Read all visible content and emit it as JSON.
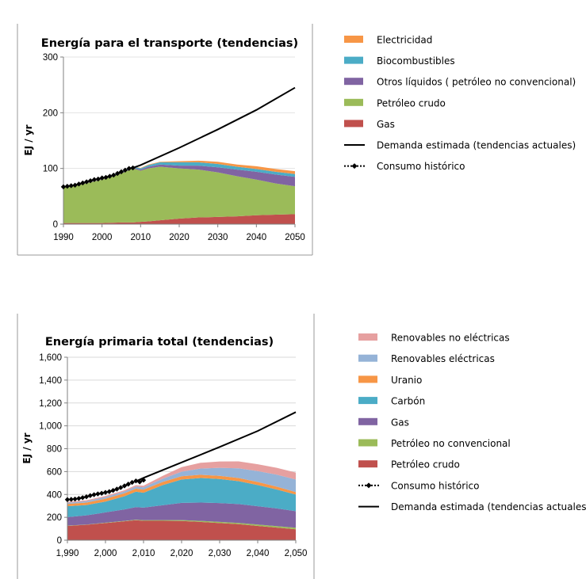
{
  "chart_data": [
    {
      "type": "area",
      "title": "Energía para el transporte (tendencias)",
      "ylabel": "EJ / yr",
      "xlabel": "",
      "xlim": [
        1990,
        2050
      ],
      "ylim": [
        0,
        300
      ],
      "x_ticks": [
        1990,
        2000,
        2010,
        2020,
        2030,
        2040,
        2050
      ],
      "y_ticks": [
        0,
        100,
        200,
        300
      ],
      "y_tick_labels": [
        "0",
        "100",
        "200",
        "300"
      ],
      "x": [
        1990,
        1995,
        2000,
        2005,
        2008,
        2010,
        2012,
        2015,
        2020,
        2025,
        2030,
        2035,
        2040,
        2045,
        2050
      ],
      "stacked_series": [
        {
          "name": "Gas",
          "color": "#C0504D",
          "values": [
            2,
            2,
            2,
            3,
            3,
            4,
            5,
            7,
            10,
            12,
            13,
            14,
            16,
            17,
            18
          ]
        },
        {
          "name": "Petróleo crudo",
          "color": "#9BBB59",
          "values": [
            64,
            70,
            78,
            88,
            97,
            92,
            95,
            96,
            90,
            86,
            80,
            72,
            64,
            56,
            50
          ]
        },
        {
          "name": "Otros líquidos ( petróleo no convencional)",
          "color": "#8064A2",
          "values": [
            1,
            1,
            1,
            2,
            2,
            2,
            3,
            4,
            5,
            7,
            9,
            12,
            14,
            16,
            17
          ]
        },
        {
          "name": "Biocombustibles",
          "color": "#4BACC6",
          "values": [
            0,
            0,
            0,
            1,
            2,
            2,
            3,
            4,
            6,
            6,
            6,
            5,
            5,
            5,
            5
          ]
        },
        {
          "name": "Electricidad",
          "color": "#F79646",
          "values": [
            0,
            0,
            0,
            0,
            0,
            1,
            1,
            1,
            2,
            3,
            4,
            4,
            5,
            5,
            5
          ]
        }
      ],
      "line_series": [
        {
          "name": "Demanda estimada (tendencias actuales)",
          "style": "solid",
          "x": [
            2008,
            2010,
            2020,
            2030,
            2040,
            2050
          ],
          "values": [
            101,
            106,
            137,
            170,
            205,
            245
          ]
        },
        {
          "name": "Consumo histórico",
          "style": "dotted-diamond",
          "x": [
            1990,
            1991,
            1992,
            1993,
            1994,
            1995,
            1996,
            1997,
            1998,
            1999,
            2000,
            2001,
            2002,
            2003,
            2004,
            2005,
            2006,
            2007,
            2008
          ],
          "values": [
            67,
            68,
            69,
            70,
            72,
            74,
            76,
            78,
            80,
            81,
            83,
            84,
            86,
            88,
            91,
            94,
            97,
            100,
            101
          ]
        }
      ],
      "legend": {
        "placement": "right",
        "entries": [
          {
            "label": "Electricidad",
            "kind": "swatch",
            "color": "#F79646"
          },
          {
            "label": "Biocombustibles",
            "kind": "swatch",
            "color": "#4BACC6"
          },
          {
            "label": "Otros líquidos ( petróleo no convencional)",
            "kind": "swatch",
            "color": "#8064A2"
          },
          {
            "label": "Petróleo crudo",
            "kind": "swatch",
            "color": "#9BBB59"
          },
          {
            "label": "Gas",
            "kind": "swatch",
            "color": "#C0504D"
          },
          {
            "label": "Demanda estimada (tendencias actuales)",
            "kind": "line"
          },
          {
            "label": "Consumo histórico",
            "kind": "dotted"
          }
        ]
      }
    },
    {
      "type": "area",
      "title": "Energía primaria total  (tendencias)",
      "ylabel": "EJ / yr",
      "xlabel": "",
      "xlim": [
        1990,
        2050
      ],
      "ylim": [
        0,
        1600
      ],
      "x_ticks": [
        1990,
        2000,
        2010,
        2020,
        2030,
        2040,
        2050
      ],
      "x_tick_labels": [
        "1,990",
        "2,000",
        "2,010",
        "2,020",
        "2,030",
        "2,040",
        "2,050"
      ],
      "y_ticks": [
        0,
        200,
        400,
        600,
        800,
        1000,
        1200,
        1400,
        1600
      ],
      "y_tick_labels": [
        "0",
        "200",
        "400",
        "600",
        "800",
        "1,000",
        "1,200",
        "1,400",
        "1,600"
      ],
      "x": [
        1990,
        1995,
        2000,
        2005,
        2008,
        2010,
        2015,
        2020,
        2025,
        2030,
        2035,
        2040,
        2045,
        2050
      ],
      "stacked_series": [
        {
          "name": "Petróleo crudo",
          "color": "#C0504D",
          "values": [
            125,
            135,
            150,
            165,
            175,
            170,
            170,
            168,
            160,
            150,
            140,
            125,
            110,
            95
          ]
        },
        {
          "name": "Petróleo no convencional",
          "color": "#9BBB59",
          "values": [
            2,
            2,
            3,
            4,
            4,
            5,
            6,
            8,
            9,
            10,
            11,
            12,
            13,
            14
          ]
        },
        {
          "name": "Gas",
          "color": "#8064A2",
          "values": [
            75,
            80,
            90,
            100,
            110,
            110,
            130,
            150,
            160,
            165,
            165,
            160,
            155,
            145
          ]
        },
        {
          "name": "Carbón",
          "color": "#4BACC6",
          "values": [
            95,
            90,
            95,
            115,
            135,
            130,
            175,
            205,
            215,
            210,
            200,
            185,
            165,
            145
          ]
        },
        {
          "name": "Uranio",
          "color": "#F79646",
          "values": [
            20,
            22,
            25,
            26,
            27,
            27,
            28,
            28,
            28,
            28,
            28,
            27,
            25,
            22
          ]
        },
        {
          "name": "Renovables eléctricas",
          "color": "#95B3D7",
          "values": [
            10,
            12,
            14,
            16,
            18,
            20,
            28,
            40,
            55,
            70,
            85,
            95,
            105,
            110
          ]
        },
        {
          "name": "Renovables no eléctricas",
          "color": "#E6A0A0",
          "values": [
            8,
            9,
            10,
            11,
            12,
            14,
            25,
            40,
            50,
            55,
            60,
            60,
            60,
            60
          ]
        }
      ],
      "line_series": [
        {
          "name": "Consumo histórico",
          "style": "dotted-diamond",
          "x": [
            1990,
            1991,
            1992,
            1993,
            1994,
            1995,
            1996,
            1997,
            1998,
            1999,
            2000,
            2001,
            2002,
            2003,
            2004,
            2005,
            2006,
            2007,
            2008,
            2009,
            2010
          ],
          "values": [
            355,
            357,
            360,
            365,
            372,
            380,
            390,
            398,
            405,
            410,
            418,
            425,
            435,
            447,
            460,
            475,
            490,
            505,
            518,
            510,
            525
          ]
        },
        {
          "name": "Demanda estimada (tendencias actuales)",
          "style": "solid",
          "x": [
            2008,
            2010,
            2020,
            2030,
            2040,
            2050
          ],
          "values": [
            515,
            545,
            680,
            815,
            955,
            1120
          ]
        }
      ],
      "legend": {
        "placement": "right",
        "entries": [
          {
            "label": "Renovables no eléctricas",
            "kind": "swatch",
            "color": "#E6A0A0"
          },
          {
            "label": "Renovables eléctricas",
            "kind": "swatch",
            "color": "#95B3D7"
          },
          {
            "label": "Uranio",
            "kind": "swatch",
            "color": "#F79646"
          },
          {
            "label": "Carbón",
            "kind": "swatch",
            "color": "#4BACC6"
          },
          {
            "label": "Gas",
            "kind": "swatch",
            "color": "#8064A2"
          },
          {
            "label": "Petróleo no convencional",
            "kind": "swatch",
            "color": "#9BBB59"
          },
          {
            "label": "Petróleo crudo",
            "kind": "swatch",
            "color": "#C0504D"
          },
          {
            "label": "Consumo histórico",
            "kind": "dotted"
          },
          {
            "label": "Demanda estimada (tendencias actuales)",
            "kind": "line"
          }
        ]
      }
    }
  ]
}
